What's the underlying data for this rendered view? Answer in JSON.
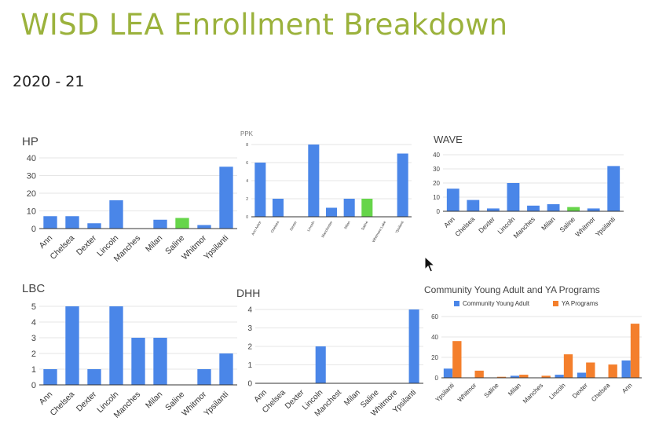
{
  "slide": {
    "title": "WISD LEA Enrollment Breakdown",
    "subtitle": "2020 - 21"
  },
  "colors": {
    "title": "#9bb23c",
    "blue": "#4a86e8",
    "green": "#66d54a",
    "orange": "#f47f2c",
    "grid": "#e6e6e6",
    "axis": "#333333"
  },
  "chart_data": [
    {
      "id": "hp",
      "type": "bar",
      "title": "HP",
      "categories": [
        "Ann",
        "Chelsea",
        "Dexter",
        "Lincoln",
        "Manches",
        "Milan",
        "Saline",
        "Whitmor",
        "Ypsilanti"
      ],
      "values": [
        7,
        7,
        3,
        16,
        0,
        5,
        6,
        2,
        35
      ],
      "highlight": [
        "Saline"
      ],
      "ylim": [
        0,
        40
      ],
      "yticks": [
        0,
        10,
        20,
        30,
        40
      ],
      "grid": true,
      "xlabel": "",
      "ylabel": ""
    },
    {
      "id": "ppk",
      "type": "bar",
      "title": "PPK",
      "categories": [
        "Ann Arbor",
        "Chelsea",
        "Dexter",
        "Lincoln",
        "Manchester",
        "Milan",
        "Saline",
        "Whitmore Lake",
        "Ypsilanti"
      ],
      "values": [
        6,
        2,
        0,
        8,
        1,
        2,
        2,
        0,
        7
      ],
      "highlight": [
        "Saline"
      ],
      "ylim": [
        0,
        8
      ],
      "yticks": [
        0,
        2,
        4,
        6,
        8
      ],
      "grid": true,
      "xlabel": "",
      "ylabel": ""
    },
    {
      "id": "wave",
      "type": "bar",
      "title": "WAVE",
      "categories": [
        "Ann",
        "Chelsea",
        "Dexter",
        "Lincoln",
        "Manches",
        "Milan",
        "Saline",
        "Whitmor",
        "Ypsilanti"
      ],
      "values": [
        16,
        8,
        2,
        20,
        4,
        5,
        3,
        2,
        32
      ],
      "highlight": [
        "Saline"
      ],
      "ylim": [
        0,
        40
      ],
      "yticks": [
        0,
        10,
        20,
        30,
        40
      ],
      "grid": true,
      "xlabel": "",
      "ylabel": ""
    },
    {
      "id": "lbc",
      "type": "bar",
      "title": "LBC",
      "categories": [
        "Ann",
        "Chelsea",
        "Dexter",
        "Lincoln",
        "Manches",
        "Milan",
        "Saline",
        "Whitmor",
        "Ypsilanti"
      ],
      "values": [
        1,
        5,
        1,
        5,
        3,
        3,
        0,
        1,
        2
      ],
      "highlight": [],
      "ylim": [
        0,
        5
      ],
      "yticks": [
        0,
        1,
        2,
        3,
        4,
        5
      ],
      "grid": true,
      "xlabel": "",
      "ylabel": ""
    },
    {
      "id": "dhh",
      "type": "bar",
      "title": "DHH",
      "categories": [
        "Ann",
        "Chelsea",
        "Dexter",
        "Lincoln",
        "Manchest",
        "Milan",
        "Saline",
        "Whitmore",
        "Ypsilanti"
      ],
      "values": [
        0,
        0,
        0,
        2,
        0,
        0,
        0,
        0,
        4
      ],
      "highlight": [],
      "ylim": [
        0,
        4
      ],
      "yticks": [
        0,
        1,
        2,
        3,
        4
      ],
      "grid": true,
      "xlabel": "",
      "ylabel": ""
    },
    {
      "id": "community",
      "type": "bar",
      "title": "Community Young Adult and YA Programs",
      "categories": [
        "Ypsilanti",
        "Whitmor",
        "Saline",
        "Milan",
        "Manches",
        "Lincoln",
        "Dexter",
        "Chelsea",
        "Ann"
      ],
      "series": [
        {
          "name": "Community Young Adult",
          "color": "#4a86e8",
          "values": [
            9,
            0,
            0,
            2,
            0,
            3,
            5,
            0,
            17
          ]
        },
        {
          "name": "YA Programs",
          "color": "#f47f2c",
          "values": [
            36,
            7,
            1,
            3,
            2,
            23,
            15,
            13,
            53
          ]
        }
      ],
      "ylim": [
        0,
        60
      ],
      "yticks": [
        0,
        20,
        40,
        60
      ],
      "grid": true,
      "legend": "top",
      "xlabel": "",
      "ylabel": ""
    }
  ]
}
